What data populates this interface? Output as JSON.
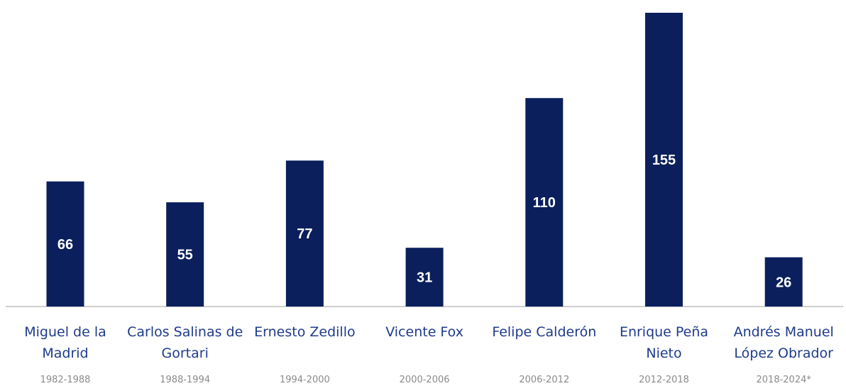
{
  "chart_data": {
    "type": "bar",
    "title": "",
    "xlabel": "",
    "ylabel": "",
    "ylim": [
      0,
      170
    ],
    "grid": false,
    "categories": [
      [
        "Miguel de la",
        "Madrid"
      ],
      [
        "Carlos Salinas de",
        "Gortari"
      ],
      [
        "Ernesto Zedillo"
      ],
      [
        "Vicente Fox"
      ],
      [
        "Felipe Calderón"
      ],
      [
        "Enrique Peña",
        "Nieto"
      ],
      [
        "Andrés Manuel",
        "López Obrador"
      ]
    ],
    "periods": [
      "1982-1988",
      "1988-1994",
      "1994-2000",
      "2000-2006",
      "2006-2012",
      "2012-2018",
      "2018-2024*"
    ],
    "values": [
      66,
      55,
      77,
      31,
      110,
      155,
      26
    ],
    "colors": {
      "bar": "#0b1f5c",
      "label": "#ffffff",
      "category": "#1f3b8c",
      "period": "#8a8a8a"
    }
  }
}
